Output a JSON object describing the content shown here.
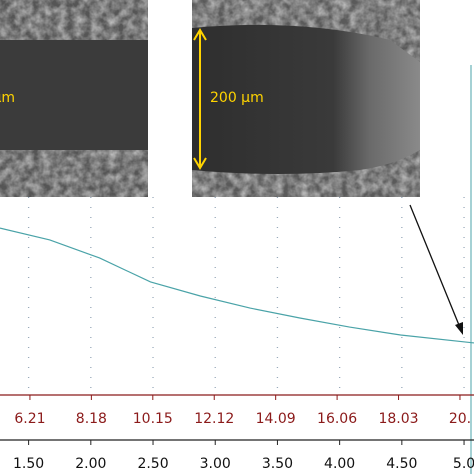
{
  "chart_data": {
    "type": "line",
    "annotations": [
      "μm",
      "200 μm"
    ],
    "x": [
      1.27,
      1.67,
      2.07,
      2.48,
      2.88,
      3.28,
      3.68,
      4.08,
      4.49,
      5.08
    ],
    "values": [
      84.3,
      78.3,
      69.2,
      57.1,
      50,
      43.9,
      38.9,
      34.3,
      30.3,
      26.3
    ],
    "color": "#4aa3a8",
    "xlim": [
      1.27,
      5.08
    ],
    "xticks": [
      {
        "value": 1.5,
        "label": "1.50"
      },
      {
        "value": 2,
        "label": "2.00"
      },
      {
        "value": 2.5,
        "label": "2.50"
      },
      {
        "value": 3,
        "label": "3.00"
      },
      {
        "value": 3.5,
        "label": "3.50"
      },
      {
        "value": 4,
        "label": "4.00"
      },
      {
        "value": 4.5,
        "label": "4.50"
      },
      {
        "value": 5,
        "label": "5.0"
      }
    ],
    "x2lim": [
      5.25,
      20.45
    ],
    "x2ticks": [
      6.21,
      8.18,
      10.15,
      12.12,
      14.09,
      16.06,
      18.03,
      {
        "value": 20,
        "label": "20."
      }
    ],
    "x2color": "#8b1a1a",
    "ylim": [
      0,
      100
    ],
    "grid": true
  }
}
